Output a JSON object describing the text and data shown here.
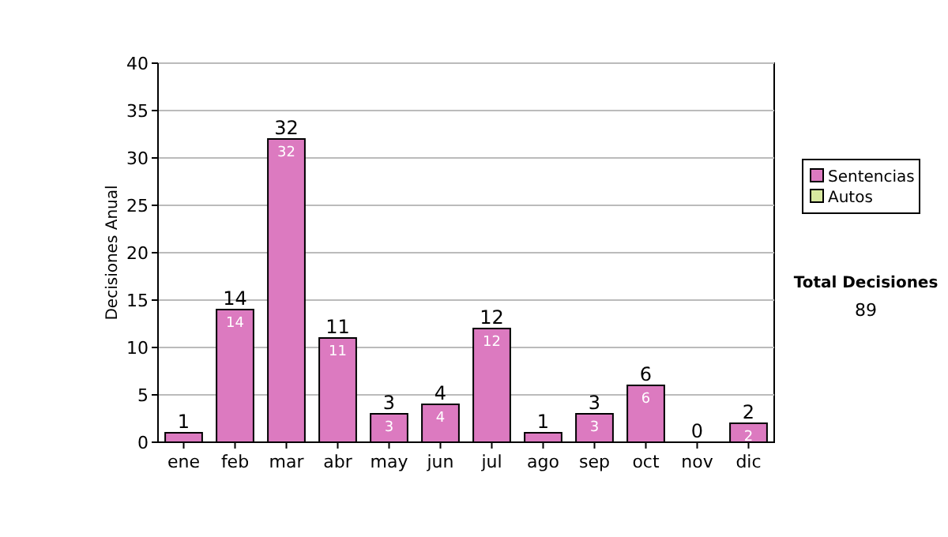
{
  "chart_data": {
    "type": "bar",
    "ylabel": "Decisiones Anual",
    "categories": [
      "ene",
      "feb",
      "mar",
      "abr",
      "may",
      "jun",
      "jul",
      "ago",
      "sep",
      "oct",
      "nov",
      "dic"
    ],
    "series": [
      {
        "name": "Sentencias",
        "color": "#dc7ac0",
        "values": [
          1,
          14,
          32,
          11,
          3,
          4,
          12,
          1,
          3,
          6,
          0,
          2
        ],
        "value_labels": [
          null,
          "14",
          "32",
          "11",
          "3",
          "4",
          "12",
          null,
          "3",
          "6",
          null,
          "2"
        ]
      },
      {
        "name": "Autos",
        "color": "#d8e8a0",
        "values": [
          0,
          0,
          0,
          0,
          0,
          0,
          0,
          0,
          0,
          0,
          0,
          0
        ]
      }
    ],
    "totals": [
      "1",
      "14",
      "32",
      "11",
      "3",
      "4",
      "12",
      "1",
      "3",
      "6",
      "0",
      "2"
    ],
    "ylim": [
      0,
      40
    ],
    "yticks": [
      0,
      5,
      10,
      15,
      20,
      25,
      30,
      35,
      40
    ],
    "grid": "y",
    "legend": "right",
    "annotations": [
      "Total Decisiones",
      "89"
    ]
  }
}
